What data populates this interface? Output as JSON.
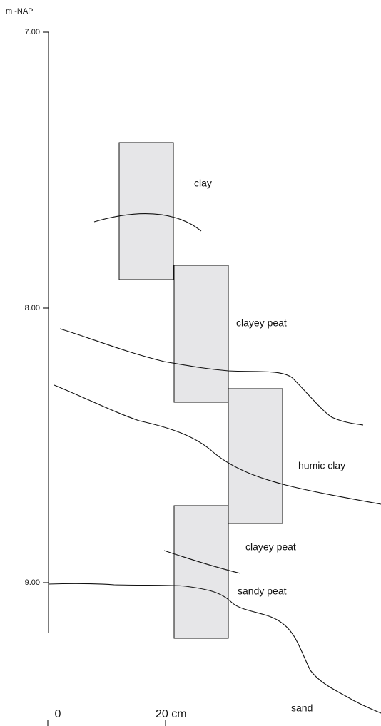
{
  "axis": {
    "label": "m -NAP",
    "ticks": [
      "7.00",
      "8.00",
      "9.00"
    ]
  },
  "x_axis": {
    "ticks": [
      "0",
      "20 cm"
    ]
  },
  "layers": [
    "clay",
    "clayey peat",
    "humic clay",
    "clayey peat",
    "sandy peat",
    "sand"
  ]
}
